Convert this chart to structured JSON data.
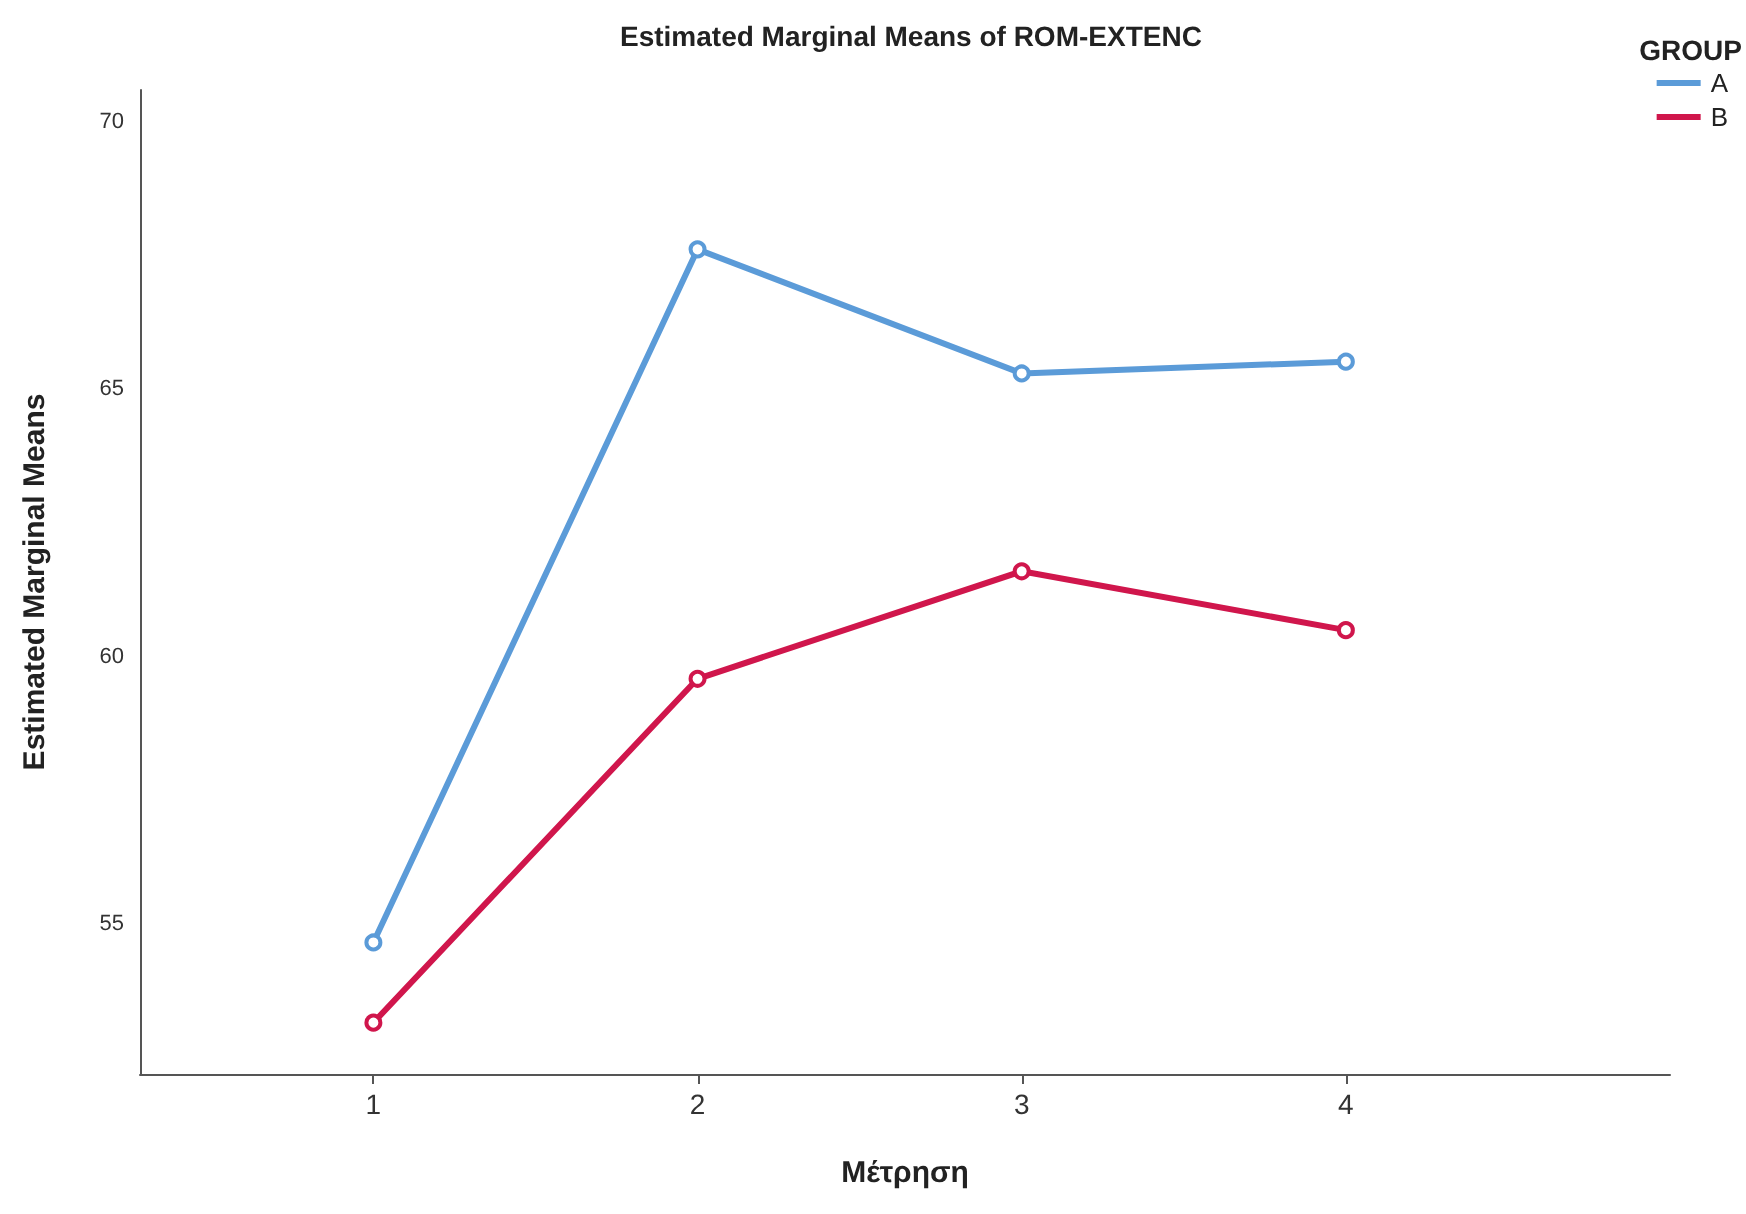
{
  "chart_data": {
    "type": "line",
    "title": "Estimated Marginal Means of ROM-EXTENC",
    "xlabel": "Μέτρηση",
    "ylabel": "Estimated Marginal Means",
    "legend_title": "GROUP",
    "legend": "top right",
    "marker": "circle",
    "line_style": "solid",
    "grid": false,
    "x": [
      1,
      2,
      3,
      4
    ],
    "xlim": [
      0.28,
      5
    ],
    "xticks": [
      1,
      2,
      3,
      4
    ],
    "ylim": [
      52.2,
      70.6
    ],
    "yticks": [
      55,
      60,
      65,
      70
    ],
    "series": [
      {
        "name": "A",
        "color": "#5b9bd8",
        "values": [
          54.66,
          67.62,
          65.3,
          65.52
        ]
      },
      {
        "name": "B",
        "color": "#d0164c",
        "values": [
          53.16,
          59.59,
          61.6,
          60.5
        ]
      }
    ]
  }
}
